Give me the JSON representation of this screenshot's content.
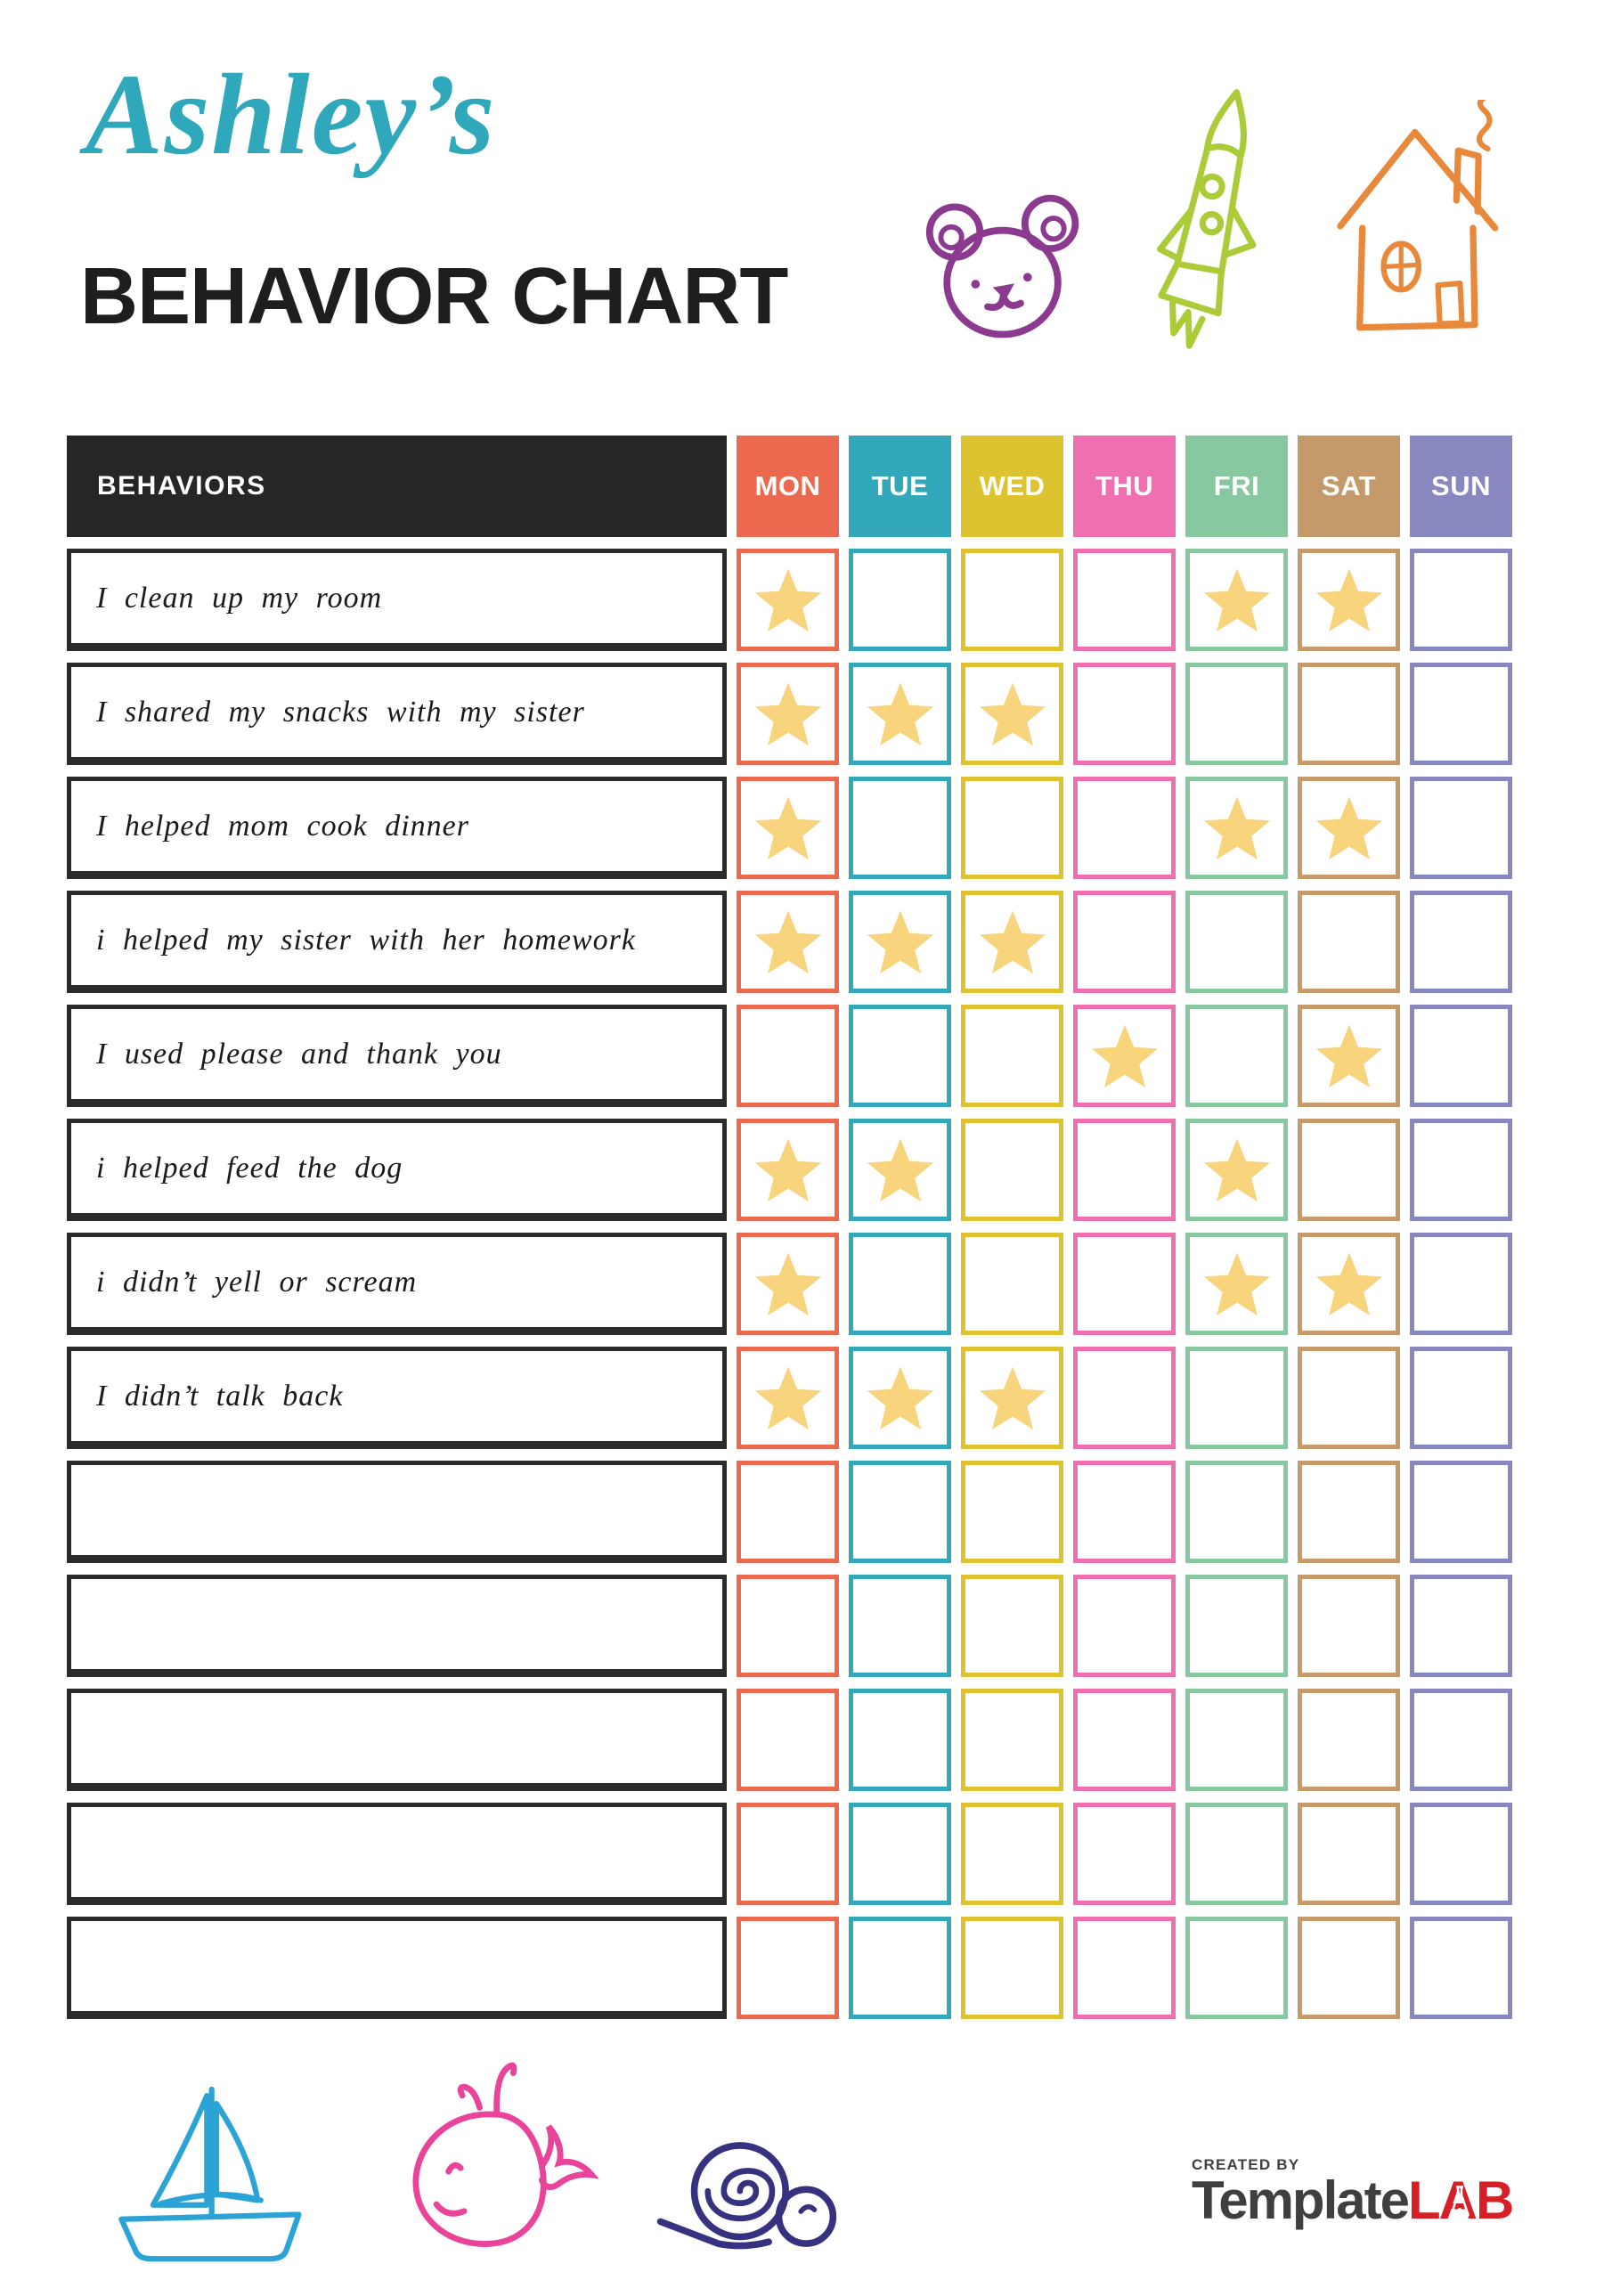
{
  "page": {
    "child_name_script": "Ashley’s",
    "heading": "BEHAVIOR CHART"
  },
  "table": {
    "behaviors_header": "BEHAVIORS",
    "days": [
      {
        "label": "MON",
        "color": "#EB6A4F"
      },
      {
        "label": "TUE",
        "color": "#33A8BA"
      },
      {
        "label": "WED",
        "color": "#DCC32F"
      },
      {
        "label": "THU",
        "color": "#F06FB1"
      },
      {
        "label": "FRI",
        "color": "#87C8A0"
      },
      {
        "label": "SAT",
        "color": "#C59A6B"
      },
      {
        "label": "SUN",
        "color": "#8987BF"
      }
    ],
    "rows": [
      {
        "behavior": "I clean up my room",
        "stars": [
          "MON",
          "FRI",
          "SAT"
        ]
      },
      {
        "behavior": "I shared my snacks with my sister",
        "stars": [
          "MON",
          "TUE",
          "WED"
        ]
      },
      {
        "behavior": "I helped mom cook dinner",
        "stars": [
          "MON",
          "FRI",
          "SAT"
        ]
      },
      {
        "behavior": "i helped my sister with her homework",
        "stars": [
          "MON",
          "TUE",
          "WED"
        ]
      },
      {
        "behavior": "I used please and thank you",
        "stars": [
          "THU",
          "SAT"
        ]
      },
      {
        "behavior": "i helped feed the dog",
        "stars": [
          "MON",
          "TUE",
          "FRI"
        ]
      },
      {
        "behavior": "i didn’t yell or scream",
        "stars": [
          "MON",
          "FRI",
          "SAT"
        ]
      },
      {
        "behavior": "I didn’t talk back",
        "stars": [
          "MON",
          "TUE",
          "WED"
        ]
      },
      {
        "behavior": "",
        "stars": []
      },
      {
        "behavior": "",
        "stars": []
      },
      {
        "behavior": "",
        "stars": []
      },
      {
        "behavior": "",
        "stars": []
      },
      {
        "behavior": "",
        "stars": []
      }
    ]
  },
  "colors": {
    "accent_teal": "#2FA8BC",
    "heading_text": "#1E1E1E",
    "table_header_bg": "#262626",
    "row_border": "#2B2B2B",
    "star": "#F8D47C",
    "doodles": {
      "bear": "#8B3A8F",
      "rocket": "#ABCC38",
      "house": "#E8883A",
      "sailboat": "#2BA3D4",
      "whale": "#E9439A",
      "snail": "#37327F"
    },
    "logo_dark": "#3F3F3F",
    "logo_red": "#D62027"
  },
  "footer": {
    "logo_created_by": "CREATED BY",
    "logo_template": "Template",
    "logo_lab": "LAB"
  },
  "icons": [
    "bear-icon",
    "rocket-icon",
    "house-icon",
    "sailboat-icon",
    "whale-icon",
    "snail-icon",
    "star-icon",
    "flask-icon"
  ]
}
